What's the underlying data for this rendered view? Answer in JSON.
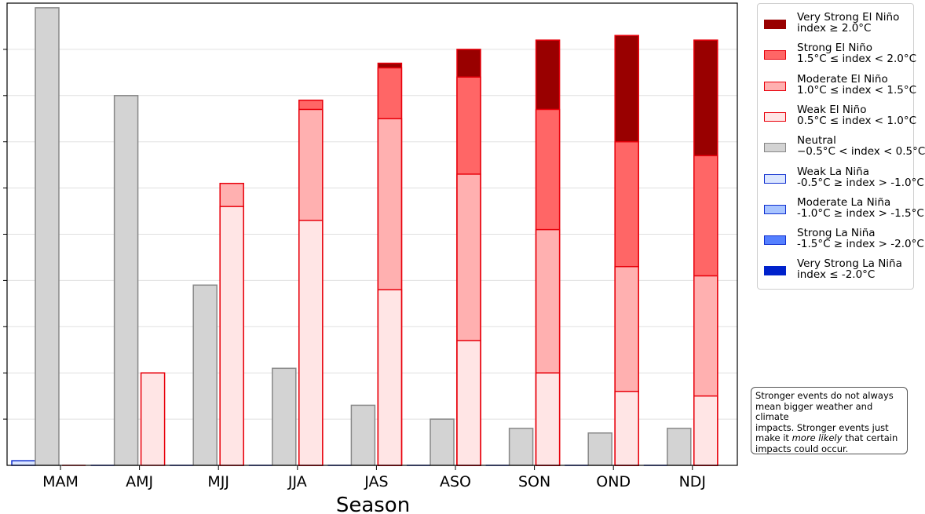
{
  "chart_data": {
    "type": "bar",
    "xlabel": "Season",
    "categories": [
      "MAM",
      "AMJ",
      "MJJ",
      "JJA",
      "JAS",
      "ASO",
      "SON",
      "OND",
      "NDJ"
    ],
    "ylim": [
      0,
      100
    ],
    "grid": "horizontal",
    "legend_position": "right",
    "neutral": {
      "name": "Neutral",
      "values": [
        99,
        80,
        39,
        21,
        13,
        10,
        8,
        7,
        8
      ]
    },
    "la_nina": {
      "weak": [
        1,
        0,
        0,
        0,
        0,
        0,
        0,
        0,
        0
      ]
    },
    "el_nino_cumulative": {
      "weak": [
        0,
        20,
        56,
        53,
        38,
        27,
        20,
        16,
        15
      ],
      "moderate": [
        0,
        0,
        61,
        77,
        75,
        63,
        51,
        43,
        41
      ],
      "strong": [
        0,
        0,
        0,
        79,
        86,
        84,
        77,
        70,
        67
      ],
      "very_strong": [
        0,
        0,
        0,
        0,
        87,
        90,
        92,
        93,
        92
      ]
    },
    "colors": {
      "neutral_fill": "#d3d3d3",
      "neutral_edge": "#888888",
      "elnino_edge": "#e8000b",
      "elnino_weak": "#ffe5e5",
      "elnino_moderate": "#ffb0b0",
      "elnino_strong": "#ff6666",
      "elnino_very_strong": "#990000",
      "lanina_edge": "#1030d0",
      "lanina_weak": "#dbe6ff",
      "lanina_moderate": "#a8c4ff",
      "lanina_strong": "#5580ff",
      "lanina_very_strong": "#0022cc",
      "grid": "#e0e0e0"
    }
  },
  "legend": [
    {
      "line1": "Very Strong El Niño",
      "line2": "index ≥ 2.0°C",
      "fill": "#990000",
      "edge": "#990000"
    },
    {
      "line1": "Strong El Niño",
      "line2": "1.5°C ≤ index < 2.0°C",
      "fill": "#ff6666",
      "edge": "#e8000b"
    },
    {
      "line1": "Moderate El Niño",
      "line2": "1.0°C ≤ index < 1.5°C",
      "fill": "#ffb0b0",
      "edge": "#e8000b"
    },
    {
      "line1": "Weak El Niño",
      "line2": "0.5°C ≤ index < 1.0°C",
      "fill": "#ffe5e5",
      "edge": "#e8000b"
    },
    {
      "line1": "Neutral",
      "line2": "−0.5°C < index < 0.5°C",
      "fill": "#d3d3d3",
      "edge": "#888888"
    },
    {
      "line1": "Weak La Niña",
      "line2": "-0.5°C ≥ index > -1.0°C",
      "fill": "#dbe6ff",
      "edge": "#1030d0"
    },
    {
      "line1": "Moderate La Niña",
      "line2": "-1.0°C ≥ index > -1.5°C",
      "fill": "#a8c4ff",
      "edge": "#1030d0"
    },
    {
      "line1": "Strong La Niña",
      "line2": "-1.5°C ≥ index > -2.0°C",
      "fill": "#5580ff",
      "edge": "#1030d0"
    },
    {
      "line1": "Very Strong La Niña",
      "line2": "index ≤ -2.0°C",
      "fill": "#0022cc",
      "edge": "#0022cc"
    }
  ],
  "note": {
    "part1": "Stronger events do not always\nmean bigger weather and climate\nimpacts. Stronger events just\nmake it ",
    "emphasis": "more likely",
    "part2": " that certain\nimpacts could occur."
  }
}
